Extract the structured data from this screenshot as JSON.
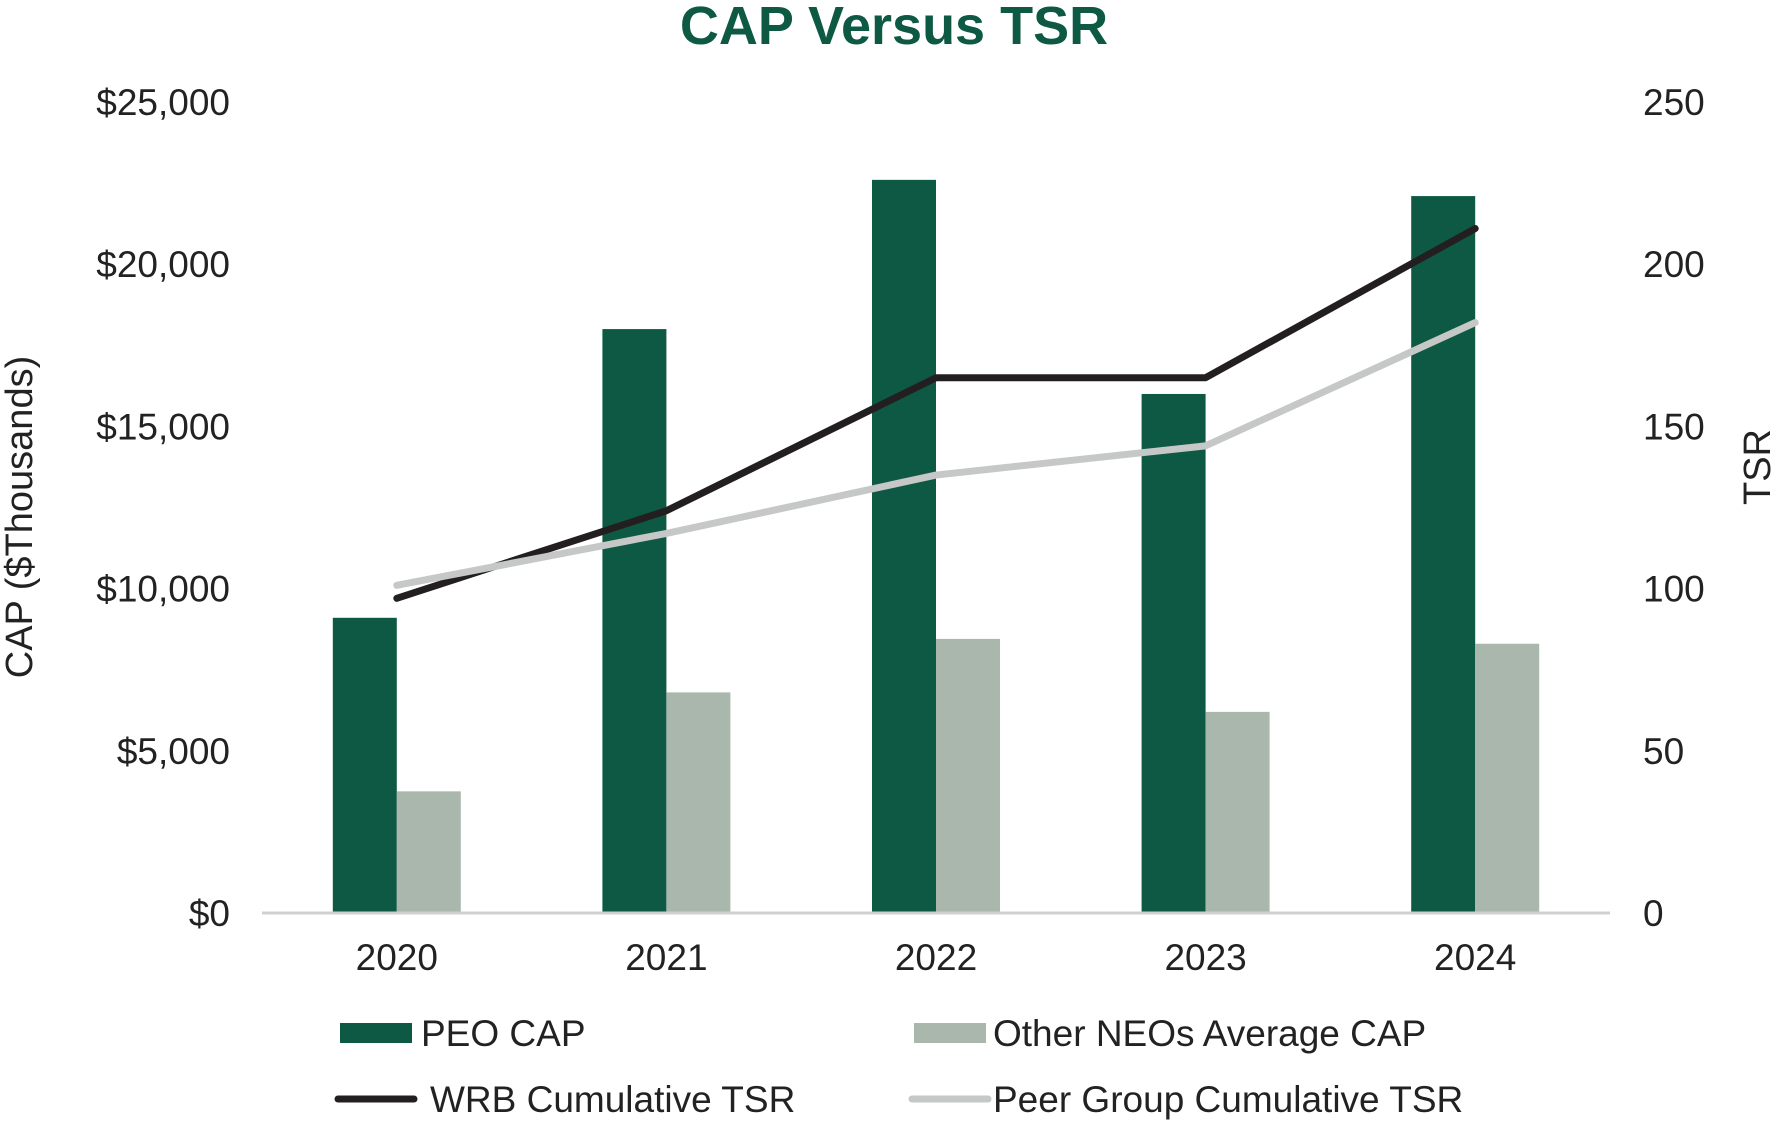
{
  "colors": {
    "title": "#0e5943",
    "peo_bar": "#0e5943",
    "neo_bar": "#a9b7ad",
    "wrb_line": "#231f20",
    "peer_line": "#c6c8c8",
    "axis_line": "#d0d0d0"
  },
  "chart_data": {
    "type": "bar",
    "title": "CAP Versus TSR",
    "categories": [
      "2020",
      "2021",
      "2022",
      "2023",
      "2024"
    ],
    "ylabel": "CAP ($Thousands)",
    "y2label": "TSR",
    "ylim": [
      0,
      25000
    ],
    "y2lim": [
      0,
      250
    ],
    "y_ticks": [
      "$0",
      "$5,000",
      "$10,000",
      "$15,000",
      "$20,000",
      "$25,000"
    ],
    "y2_ticks": [
      "0",
      "50",
      "100",
      "150",
      "200",
      "250"
    ],
    "grid": false,
    "legend_position": "bottom",
    "series": [
      {
        "name": "PEO CAP",
        "type": "bar",
        "axis": "left",
        "values": [
          9100,
          18000,
          22600,
          16000,
          22100
        ]
      },
      {
        "name": "Other NEOs Average CAP",
        "type": "bar",
        "axis": "left",
        "values": [
          3750,
          6800,
          8450,
          6200,
          8300
        ]
      },
      {
        "name": "WRB Cumulative TSR",
        "type": "line",
        "axis": "right",
        "values": [
          97,
          124,
          165,
          165,
          211
        ]
      },
      {
        "name": "Peer Group Cumulative TSR",
        "type": "line",
        "axis": "right",
        "values": [
          101,
          117,
          135,
          144,
          182
        ]
      }
    ]
  }
}
